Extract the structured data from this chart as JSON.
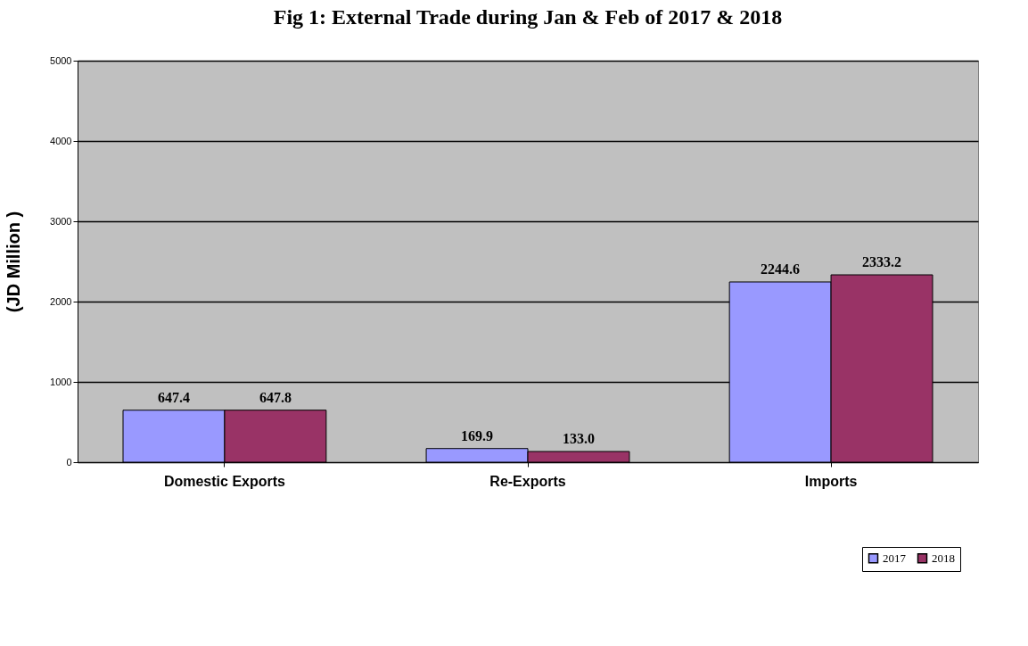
{
  "chart_data": {
    "type": "bar",
    "title": "Fig 1: External Trade during Jan & Feb of 2017 & 2018",
    "ylabel": "(JD Million )",
    "categories": [
      "Domestic Exports",
      "Re-Exports",
      "Imports"
    ],
    "series": [
      {
        "name": "2017",
        "color": "#9999ff",
        "values": [
          647.4,
          169.9,
          2244.6
        ],
        "value_labels": [
          "647.4",
          "169.9",
          "2244.6"
        ]
      },
      {
        "name": "2018",
        "color": "#993366",
        "values": [
          647.8,
          133.0,
          2333.2
        ],
        "value_labels": [
          "647.8",
          "133.0",
          "2333.2"
        ]
      }
    ],
    "ylim": [
      0,
      5000
    ],
    "yticks": [
      0,
      1000,
      2000,
      3000,
      4000,
      5000
    ],
    "grid": "y",
    "legend": "bottom right"
  }
}
